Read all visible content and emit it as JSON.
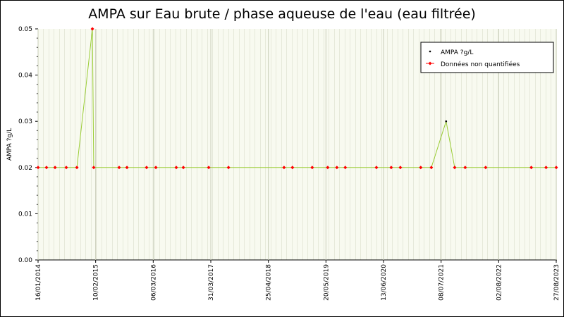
{
  "chart_data": {
    "type": "line",
    "title": "AMPA sur Eau brute / phase aqueuse de l'eau (eau filtrée)",
    "ylabel": "AMPA ?g/L",
    "xlim": [
      "16/01/2014",
      "27/08/2023"
    ],
    "xticks": [
      "16/01/2014",
      "10/02/2015",
      "06/03/2016",
      "31/03/2017",
      "25/04/2018",
      "20/05/2019",
      "13/06/2020",
      "08/07/2021",
      "02/08/2022",
      "27/08/2023"
    ],
    "ylim": [
      0,
      0.05
    ],
    "yticks": [
      {
        "value": 0,
        "label": "0.00"
      },
      0.01,
      0.02,
      0.03,
      0.04,
      0.05
    ],
    "grid": true,
    "legend": "upper right",
    "line_color": "#99cc33",
    "series": [
      {
        "name": "AMPA ?g/L",
        "color": "#000000",
        "x": [
          "16/01/2014",
          "14/03/2014",
          "11/05/2014",
          "26/07/2014",
          "06/10/2014",
          "19/01/2015",
          "28/01/2015",
          "19/07/2015",
          "10/09/2015",
          "21/01/2016",
          "24/03/2016",
          "09/08/2016",
          "26/09/2016",
          "17/03/2017",
          "29/07/2017",
          "09/08/2018",
          "05/10/2018",
          "16/02/2019",
          "01/06/2019",
          "02/08/2019",
          "28/09/2019",
          "26/04/2020",
          "04/08/2020",
          "05/10/2020",
          "20/02/2021",
          "03/05/2021",
          "11/08/2021",
          "08/10/2021",
          "18/12/2021",
          "06/05/2022",
          "11/03/2023",
          "19/06/2023",
          "27/08/2023"
        ],
        "values": [
          0.02,
          0.02,
          0.02,
          0.02,
          0.02,
          0.05,
          0.02,
          0.02,
          0.02,
          0.02,
          0.02,
          0.02,
          0.02,
          0.02,
          0.02,
          0.02,
          0.02,
          0.02,
          0.02,
          0.02,
          0.02,
          0.02,
          0.02,
          0.02,
          0.02,
          0.02,
          0.03,
          0.02,
          0.02,
          0.02,
          0.02,
          0.02,
          0.02
        ]
      },
      {
        "name": "Données non quantifiées",
        "color": "#ff0000",
        "x": [
          "16/01/2014",
          "14/03/2014",
          "11/05/2014",
          "26/07/2014",
          "06/10/2014",
          "19/01/2015",
          "28/01/2015",
          "19/07/2015",
          "10/09/2015",
          "21/01/2016",
          "24/03/2016",
          "09/08/2016",
          "26/09/2016",
          "17/03/2017",
          "29/07/2017",
          "09/08/2018",
          "05/10/2018",
          "16/02/2019",
          "01/06/2019",
          "02/08/2019",
          "28/09/2019",
          "26/04/2020",
          "04/08/2020",
          "05/10/2020",
          "20/02/2021",
          "03/05/2021",
          "08/10/2021",
          "18/12/2021",
          "06/05/2022",
          "11/03/2023",
          "19/06/2023",
          "27/08/2023"
        ],
        "values": [
          0.02,
          0.02,
          0.02,
          0.02,
          0.02,
          0.05,
          0.02,
          0.02,
          0.02,
          0.02,
          0.02,
          0.02,
          0.02,
          0.02,
          0.02,
          0.02,
          0.02,
          0.02,
          0.02,
          0.02,
          0.02,
          0.02,
          0.02,
          0.02,
          0.02,
          0.02,
          0.02,
          0.02,
          0.02,
          0.02,
          0.02,
          0.02
        ]
      }
    ]
  }
}
